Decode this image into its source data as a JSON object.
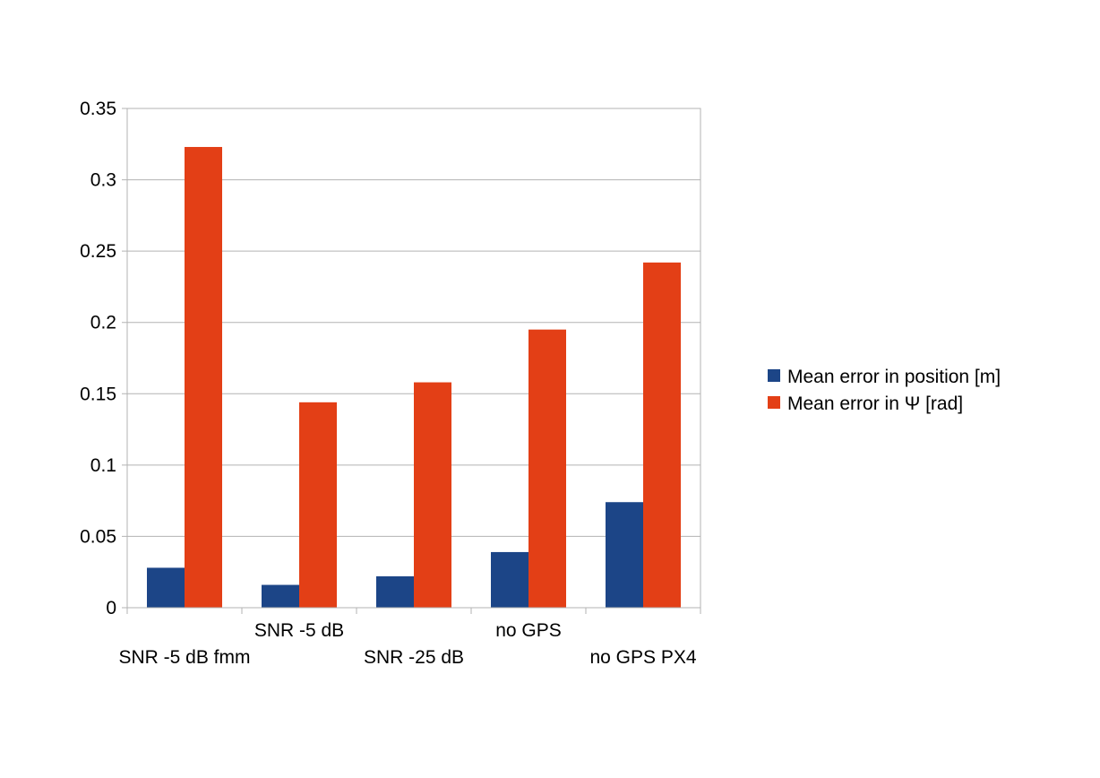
{
  "chart_data": {
    "type": "bar",
    "categories": [
      "SNR -5 dB fmm",
      "SNR -5 dB",
      "SNR -25 dB",
      "no GPS",
      "no GPS PX4"
    ],
    "series": [
      {
        "name": "Mean error in position [m]",
        "color": "#1c4587",
        "values": [
          0.028,
          0.016,
          0.022,
          0.039,
          0.074
        ]
      },
      {
        "name": "Mean error in Ψ [rad]",
        "color": "#e33f16",
        "values": [
          0.323,
          0.144,
          0.158,
          0.195,
          0.242
        ]
      }
    ],
    "yticks": [
      "0",
      "0.05",
      "0.1",
      "0.15",
      "0.2",
      "0.25",
      "0.3",
      "0.35"
    ],
    "ylim": [
      0,
      0.35
    ],
    "grid": true,
    "legend": "right",
    "category_label_rows": [
      1,
      0,
      1,
      0,
      1
    ]
  }
}
